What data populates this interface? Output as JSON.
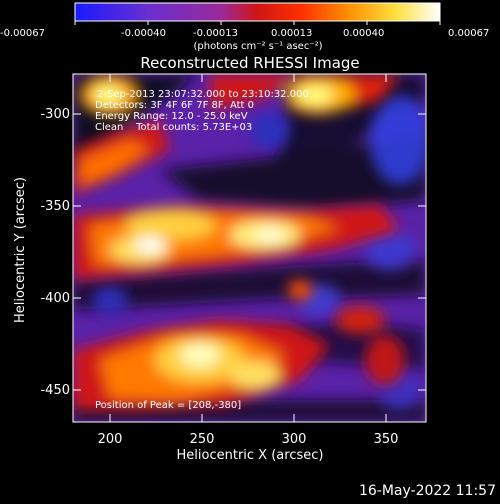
{
  "colorbar": {
    "ticks": [
      "-0.00067",
      "-0.00040",
      "-0.00013",
      "0.00013",
      "0.00040",
      "0.00067"
    ],
    "units_label": "(photons cm⁻² s⁻¹ asec⁻²)",
    "stops": [
      "#1a1aff",
      "#6a2fd0",
      "#9a2a9a",
      "#d01515",
      "#ff5a00",
      "#ffb000",
      "#ffff66",
      "#ffffff"
    ]
  },
  "title": "Reconstructed RHESSI Image",
  "info": {
    "time_range": "2-Sep-2013 23:07:32.000 to 23:10:32.000",
    "detectors": "Detectors: 3F 4F 6F 7F 8F, Att 0",
    "energy": "Energy Range: 12.0 - 25.0 keV",
    "method": "Clean    Total counts: 5.73E+03",
    "peak": "Position of Peak = [208,-380]"
  },
  "chart_data": {
    "type": "heatmap",
    "title": "Reconstructed RHESSI Image",
    "xlabel": "Heliocentric X (arcsec)",
    "ylabel": "Heliocentric Y (arcsec)",
    "xlim": [
      180,
      372
    ],
    "ylim": [
      -472,
      -280
    ],
    "xticks": [
      200,
      250,
      300,
      350
    ],
    "yticks": [
      -300,
      -350,
      -400,
      -450
    ],
    "color_scale": [
      "-0.00067",
      "0.00067"
    ],
    "peak": [
      208,
      -380
    ]
  },
  "footer": {
    "timestamp": "16-May-2022 11:57"
  }
}
